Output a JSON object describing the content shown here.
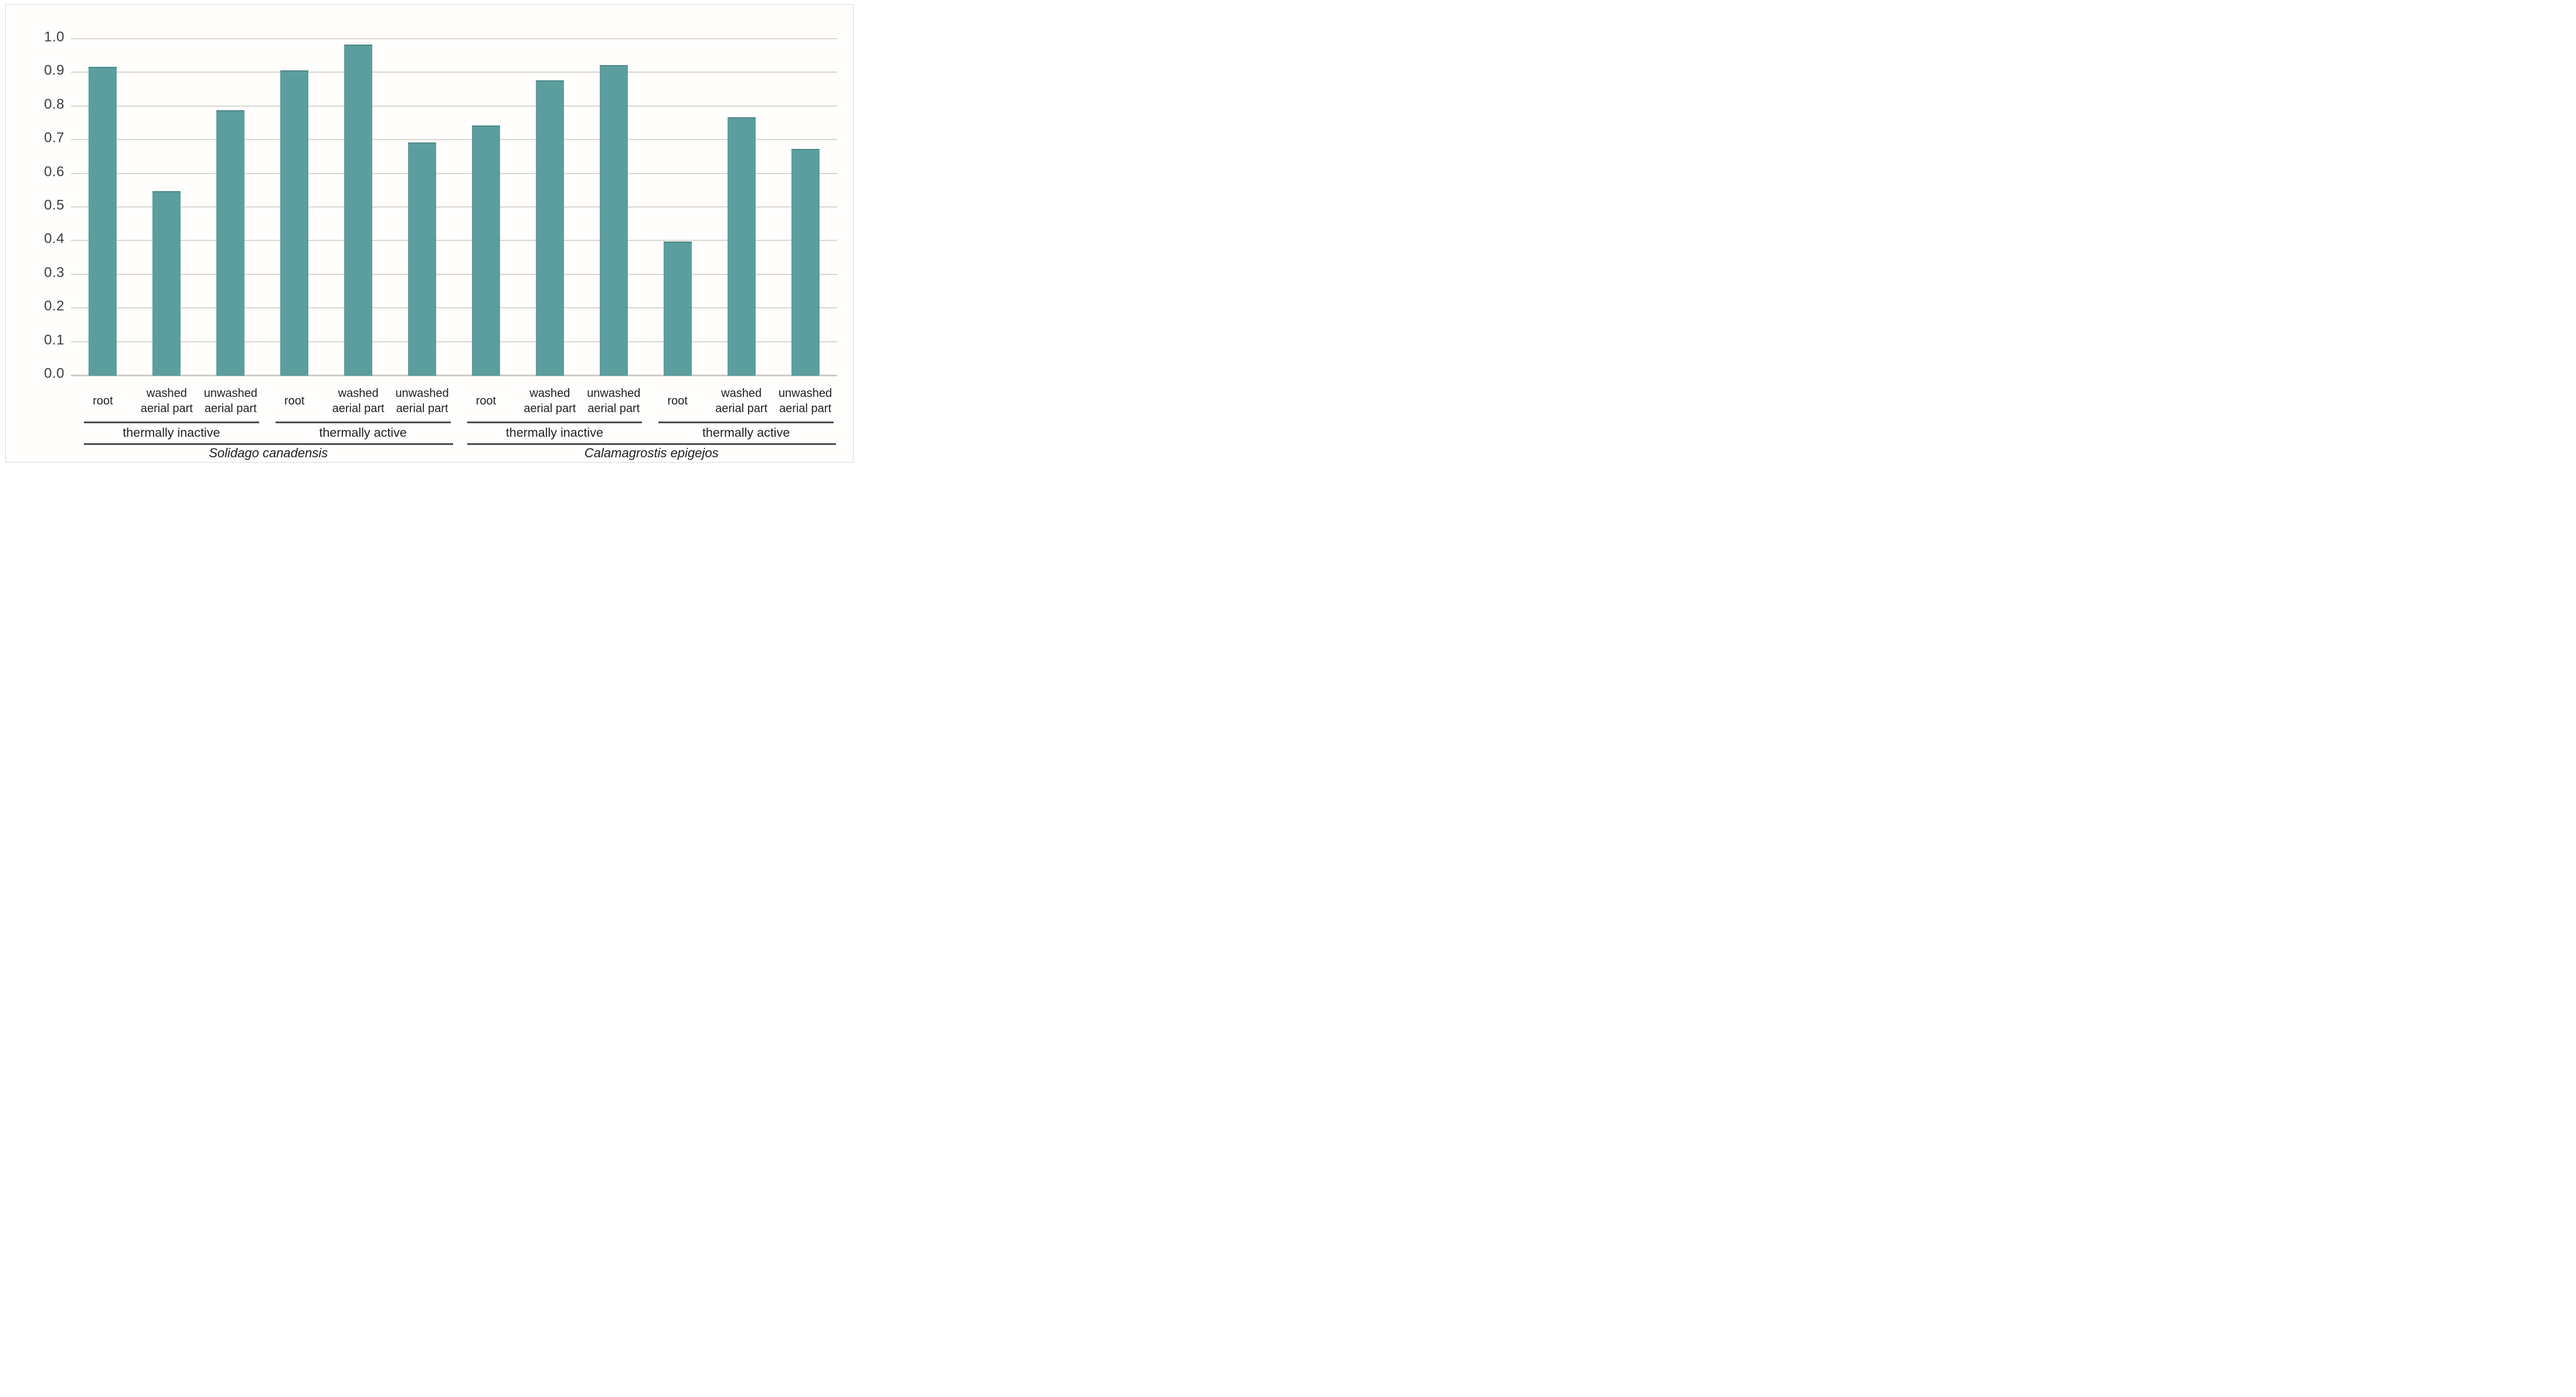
{
  "chart_data": {
    "type": "bar",
    "title": "",
    "xlabel": "",
    "ylabel": "",
    "ylim": [
      0.0,
      1.0
    ],
    "ytick_step": 0.1,
    "grid": true,
    "legend": null,
    "bar_color": "#5c9e9e",
    "bar_top_color": "#4e8889",
    "gridline_color": "#dad7d1",
    "axis_line_color": "#cfccc6",
    "rule_color": "#4d4d4d",
    "tick_text_color": "#3d3d3d",
    "label_text_color": "#1f1f1f",
    "figure_border_color": "#d9d9d9",
    "yticks": [
      {
        "value": 1.0,
        "label": "1.0"
      },
      {
        "value": 0.9,
        "label": "0.9"
      },
      {
        "value": 0.8,
        "label": "0.8"
      },
      {
        "value": 0.7,
        "label": "0.7"
      },
      {
        "value": 0.6,
        "label": "0.6"
      },
      {
        "value": 0.5,
        "label": "0.5"
      },
      {
        "value": 0.4,
        "label": "0.4"
      },
      {
        "value": 0.3,
        "label": "0.3"
      },
      {
        "value": 0.2,
        "label": "0.2"
      },
      {
        "value": 0.1,
        "label": "0.1"
      },
      {
        "value": 0.0,
        "label": "0.0"
      }
    ],
    "categories": [
      {
        "lines": [
          "root"
        ]
      },
      {
        "lines": [
          "washed",
          "aerial part"
        ]
      },
      {
        "lines": [
          "unwashed",
          "aerial part"
        ]
      },
      {
        "lines": [
          "root"
        ]
      },
      {
        "lines": [
          "washed",
          "aerial part"
        ]
      },
      {
        "lines": [
          "unwashed",
          "aerial part"
        ]
      },
      {
        "lines": [
          "root"
        ]
      },
      {
        "lines": [
          "washed",
          "aerial part"
        ]
      },
      {
        "lines": [
          "unwashed",
          "aerial part"
        ]
      },
      {
        "lines": [
          "root"
        ]
      },
      {
        "lines": [
          "washed",
          "aerial part"
        ]
      },
      {
        "lines": [
          "unwashed",
          "aerial part"
        ]
      }
    ],
    "values": [
      0.915,
      0.545,
      0.785,
      0.905,
      0.98,
      0.69,
      0.74,
      0.875,
      0.92,
      0.395,
      0.765,
      0.67
    ],
    "groups": [
      {
        "label": "thermally inactive",
        "start": 0,
        "end": 3
      },
      {
        "label": "thermally active",
        "start": 3,
        "end": 6
      },
      {
        "label": "thermally inactive",
        "start": 6,
        "end": 9
      },
      {
        "label": "thermally active",
        "start": 9,
        "end": 12
      }
    ],
    "species": [
      {
        "label": "Solidago canadensis",
        "start": 0,
        "end": 6
      },
      {
        "label": "Calamagrostis epigejos",
        "start": 6,
        "end": 12
      }
    ]
  }
}
